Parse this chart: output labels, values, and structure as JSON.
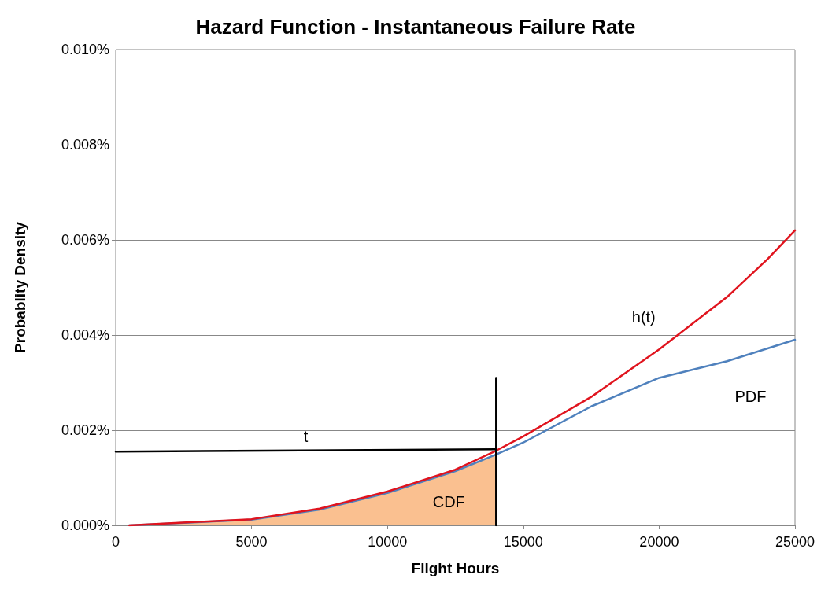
{
  "chart_data": {
    "type": "line",
    "title": "Hazard Function - Instantaneous Failure Rate",
    "xlabel": "Flight Hours",
    "ylabel": "Probablity Density",
    "xlim": [
      0,
      25000
    ],
    "xticks": [
      0,
      5000,
      10000,
      15000,
      20000,
      25000
    ],
    "ylim": [
      0,
      0.01
    ],
    "yticks": [
      {
        "value": 0,
        "label": "0.000%"
      },
      {
        "value": 0.002,
        "label": "0.002%"
      },
      {
        "value": 0.004,
        "label": "0.004%"
      },
      {
        "value": 0.006,
        "label": "0.006%"
      },
      {
        "value": 0.008,
        "label": "0.008%"
      },
      {
        "value": 0.01,
        "label": "0.010%"
      }
    ],
    "grid": "y",
    "marker": "none",
    "line_style": "solid",
    "series": [
      {
        "type": "area",
        "name": "CDF",
        "color": "#fac090",
        "x": [
          500,
          5000,
          7500,
          10000,
          12500,
          14000
        ],
        "values": [
          0,
          0.00012,
          0.00033,
          0.00068,
          0.00114,
          0.00149
        ]
      },
      {
        "name": "PDF",
        "color": "#4f81bd",
        "x": [
          500,
          5000,
          7500,
          10000,
          12500,
          14000,
          15000,
          17500,
          20000,
          22500,
          25000
        ],
        "values": [
          0,
          0.00012,
          0.00033,
          0.00068,
          0.00114,
          0.00149,
          0.00174,
          0.0025,
          0.0031,
          0.00345,
          0.0039
        ]
      },
      {
        "name": "h(t)",
        "color": "#e0141e",
        "x": [
          500,
          5000,
          7500,
          10000,
          12500,
          14000,
          15000,
          17500,
          20000,
          22500,
          24000,
          25000
        ],
        "values": [
          0,
          0.00013,
          0.00035,
          0.00071,
          0.00117,
          0.00157,
          0.00187,
          0.0027,
          0.0037,
          0.0048,
          0.0056,
          0.0062
        ]
      },
      {
        "name": "t",
        "color": "#000000",
        "x": [
          0,
          14000
        ],
        "values": [
          0.00155,
          0.0016
        ]
      },
      {
        "color": "#000000",
        "x": [
          14000,
          14000
        ],
        "values": [
          0,
          0.0031
        ]
      }
    ]
  }
}
